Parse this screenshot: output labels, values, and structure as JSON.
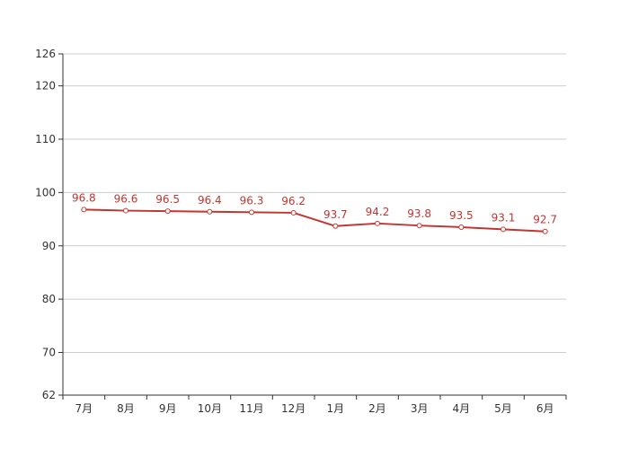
{
  "chart_data": {
    "type": "line",
    "title": "",
    "xlabel": "",
    "ylabel": "",
    "categories": [
      "7月",
      "8月",
      "9月",
      "10月",
      "11月",
      "12月",
      "1月",
      "2月",
      "3月",
      "4月",
      "5月",
      "6月"
    ],
    "series": [
      {
        "values": [
          96.8,
          96.6,
          96.5,
          96.4,
          96.3,
          96.2,
          93.7,
          94.2,
          93.8,
          93.5,
          93.1,
          92.7
        ],
        "color": "#c23531"
      }
    ],
    "ylim": [
      62,
      126
    ],
    "yticks": [
      62,
      70,
      80,
      90,
      100,
      110,
      120,
      126
    ],
    "grid": true,
    "legend": "none",
    "data_labels": true,
    "colors": {
      "line": "#c23531",
      "grid": "#cccccc",
      "axis": "#333333",
      "tick_text": "#333333"
    }
  }
}
